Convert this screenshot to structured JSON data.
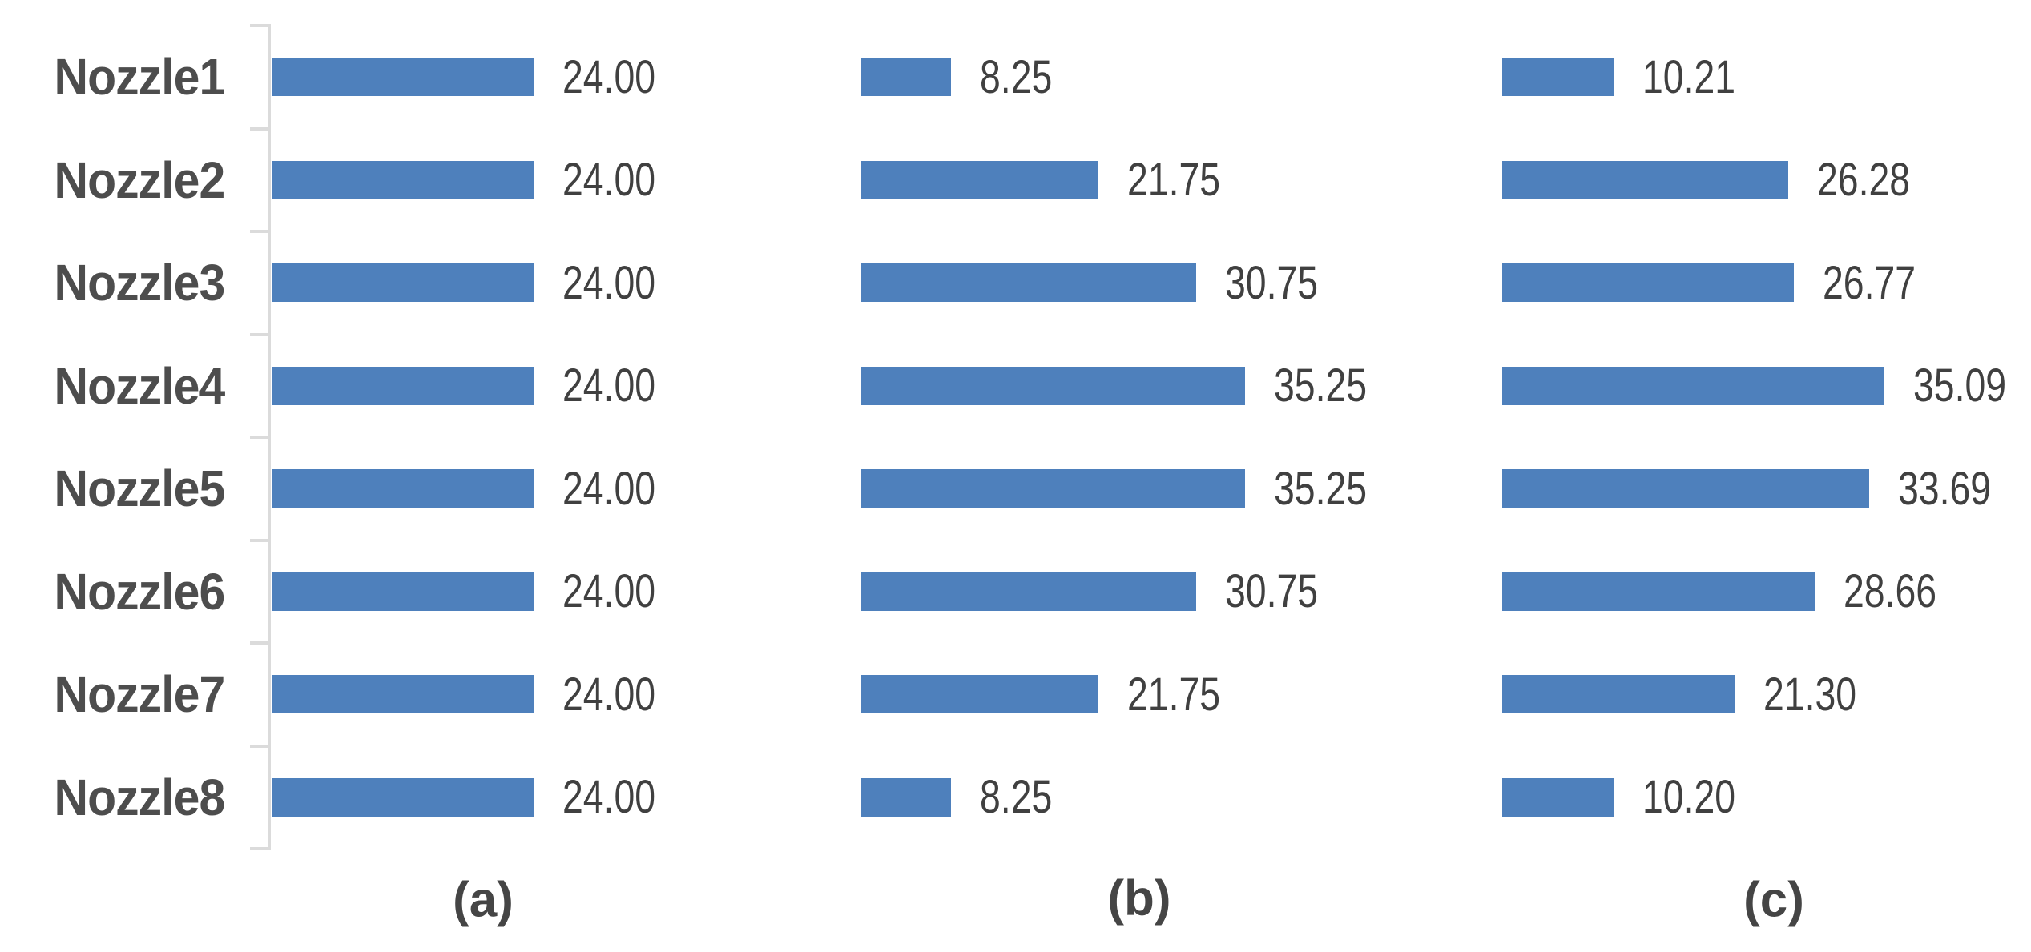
{
  "style": {
    "background": "#ffffff",
    "bar_color": "#4e80bc",
    "axis_color": "#dbdbdb",
    "category_label_color": "#4d4d4d",
    "value_label_color": "#404040",
    "sublabel_color": "#454545"
  },
  "chart_data": [
    {
      "type": "bar",
      "orientation": "horizontal",
      "sublabel": "(a)",
      "show_category_labels": true,
      "show_axis_line": true,
      "grid": false,
      "legend": false,
      "xlim": [
        0,
        40
      ],
      "categories": [
        "Nozzle1",
        "Nozzle2",
        "Nozzle3",
        "Nozzle4",
        "Nozzle5",
        "Nozzle6",
        "Nozzle7",
        "Nozzle8"
      ],
      "values": [
        24.0,
        24.0,
        24.0,
        24.0,
        24.0,
        24.0,
        24.0,
        24.0
      ],
      "value_labels": [
        "24.00",
        "24.00",
        "24.00",
        "24.00",
        "24.00",
        "24.00",
        "24.00",
        "24.00"
      ]
    },
    {
      "type": "bar",
      "orientation": "horizontal",
      "sublabel": "(b)",
      "show_category_labels": false,
      "show_axis_line": false,
      "grid": false,
      "legend": false,
      "xlim": [
        0,
        40
      ],
      "categories": [
        "Nozzle1",
        "Nozzle2",
        "Nozzle3",
        "Nozzle4",
        "Nozzle5",
        "Nozzle6",
        "Nozzle7",
        "Nozzle8"
      ],
      "values": [
        8.25,
        21.75,
        30.75,
        35.25,
        35.25,
        30.75,
        21.75,
        8.25
      ],
      "value_labels": [
        "8.25",
        "21.75",
        "30.75",
        "35.25",
        "35.25",
        "30.75",
        "21.75",
        "8.25"
      ]
    },
    {
      "type": "bar",
      "orientation": "horizontal",
      "sublabel": "(c)",
      "show_category_labels": false,
      "show_axis_line": false,
      "grid": false,
      "legend": false,
      "xlim": [
        0,
        40
      ],
      "categories": [
        "Nozzle1",
        "Nozzle2",
        "Nozzle3",
        "Nozzle4",
        "Nozzle5",
        "Nozzle6",
        "Nozzle7",
        "Nozzle8"
      ],
      "values": [
        10.21,
        26.28,
        26.77,
        35.09,
        33.69,
        28.66,
        21.3,
        10.2
      ],
      "value_labels": [
        "10.21",
        "26.28",
        "26.77",
        "35.09",
        "33.69",
        "28.66",
        "21.30",
        "10.20"
      ]
    }
  ]
}
